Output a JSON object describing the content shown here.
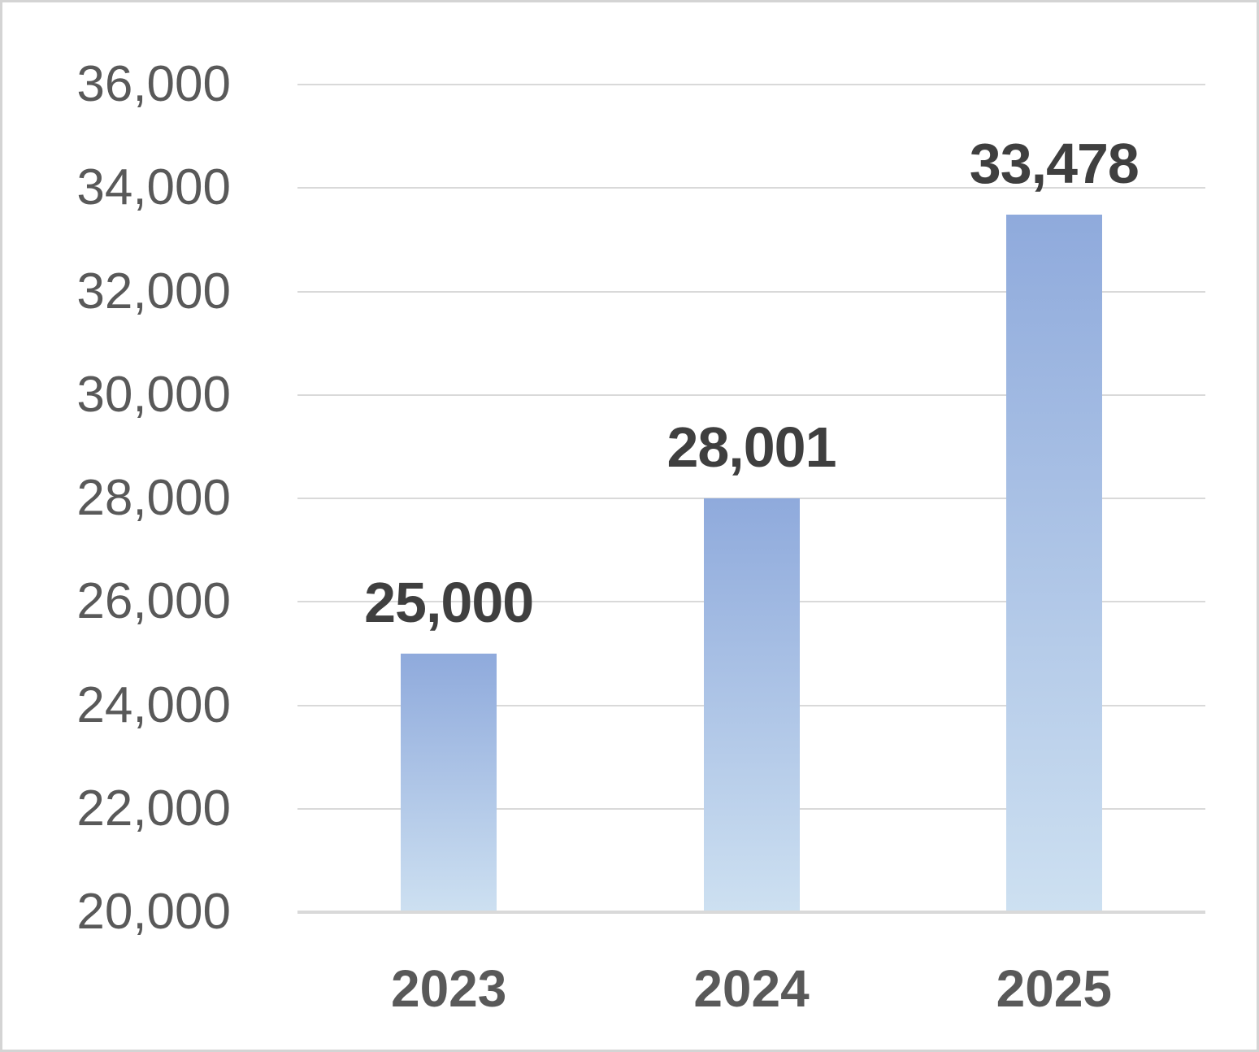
{
  "chart_data": {
    "type": "bar",
    "categories": [
      "2023",
      "2024",
      "2025"
    ],
    "values": [
      25000,
      28001,
      33478
    ],
    "data_labels": [
      "25,000",
      "28,001",
      "33,478"
    ],
    "title": "",
    "xlabel": "",
    "ylabel": "",
    "ylim": [
      20000,
      36000
    ],
    "ytick_step": 2000,
    "ytick_labels": [
      "20,000",
      "22,000",
      "24,000",
      "26,000",
      "28,000",
      "30,000",
      "32,000",
      "34,000",
      "36,000"
    ],
    "grid": true,
    "legend": false,
    "colors": {
      "bar_gradient_top": "#8FAADC",
      "bar_gradient_bottom": "#CDE0F1",
      "gridline": "#D9D9D9",
      "axis_line": "#D9D9D9",
      "tick_label": "#595959",
      "category_label": "#595959",
      "data_label": "#3F3F3F",
      "frame_border": "#D4D4D4",
      "background": "#FFFFFF"
    }
  }
}
